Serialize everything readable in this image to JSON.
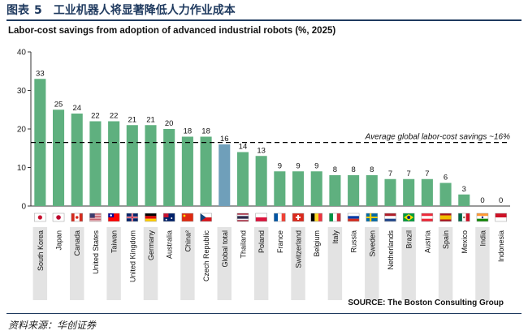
{
  "figure": {
    "label": "图表",
    "number": "5",
    "title": "工业机器人将显著降低人力作业成本"
  },
  "footer": {
    "source_label": "SOURCE: The Boston Consulting Group",
    "note": "资料来源：华创证券"
  },
  "chart_data": {
    "type": "bar",
    "title": "Labor-cost savings from adoption of advanced industrial robots (%, 2025)",
    "xlabel": "",
    "ylabel": "",
    "ylim": [
      0,
      40
    ],
    "yticks": [
      0,
      10,
      20,
      30,
      40
    ],
    "grid": false,
    "categories": [
      "South Korea",
      "Japan",
      "Canada",
      "United States",
      "Taiwan",
      "United Kingdom",
      "Germany",
      "Australia",
      "China²",
      "Czech Republic",
      "Global total",
      "Thailand",
      "Poland",
      "France",
      "Switzerland",
      "Belgium",
      "Italy",
      "Russia",
      "Sweden",
      "Netherlands",
      "Brazil",
      "Austria",
      "Spain",
      "Mexico",
      "India",
      "Indonesia"
    ],
    "values": [
      33,
      25,
      24,
      22,
      22,
      21,
      21,
      20,
      18,
      18,
      16,
      14,
      13,
      9,
      9,
      9,
      8,
      8,
      8,
      7,
      7,
      7,
      6,
      3,
      0,
      0
    ],
    "highlight_category": "Global total",
    "flags": [
      "kr",
      "jp",
      "ca",
      "us",
      "tw",
      "gb",
      "de",
      "au",
      "cn",
      "cz",
      "",
      "th",
      "pl",
      "fr",
      "ch",
      "be",
      "it",
      "ru",
      "se",
      "nl",
      "br",
      "at",
      "es",
      "mx",
      "in",
      "id"
    ],
    "colors": {
      "bar": "#5fb07f",
      "highlight": "#6f9fba",
      "reference": "#000000"
    },
    "reference_line": {
      "value": 16.5,
      "label": "Average global labor-cost savings ~16%"
    }
  }
}
